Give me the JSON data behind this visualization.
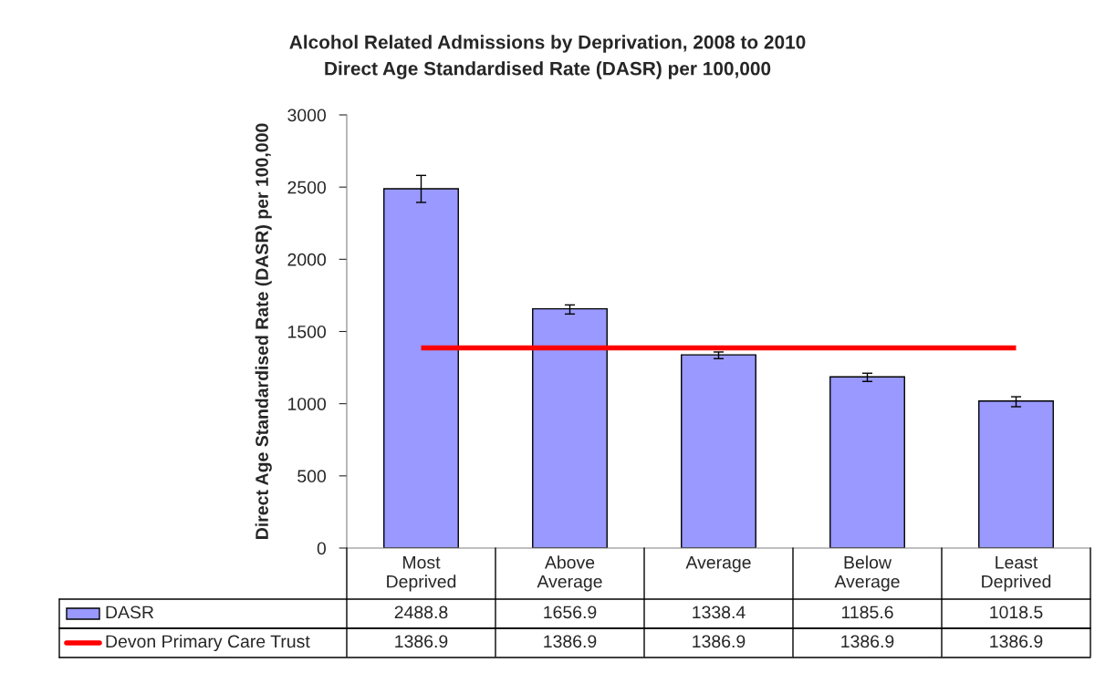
{
  "chart_data": {
    "type": "bar",
    "title": "Alcohol Related Admissions by Deprivation, 2008 to 2010",
    "subtitle": "Direct Age Standardised Rate (DASR) per 100,000",
    "ylabel": "Direct Age Standardised Rate (DASR) per 100,000",
    "categories": [
      "Most Deprived",
      "Above Average",
      "Average",
      "Below Average",
      "Least Deprived"
    ],
    "series": [
      {
        "name": "DASR",
        "color": "#9999ff",
        "values": [
          2488.8,
          1656.9,
          1338.4,
          1185.6,
          1018.5
        ],
        "errors": [
          [
            2394,
            2581
          ],
          [
            1621,
            1684
          ],
          [
            1312,
            1358
          ],
          [
            1154,
            1211
          ],
          [
            979,
            1048
          ]
        ]
      },
      {
        "name": "Devon Primary Care Trust",
        "type": "line",
        "color": "#ff0000",
        "values": [
          1386.9,
          1386.9,
          1386.9,
          1386.9,
          1386.9
        ]
      }
    ],
    "ylim": [
      0,
      3000
    ],
    "yticks": [
      0,
      500,
      1000,
      1500,
      2000,
      2500,
      3000
    ],
    "grid": false,
    "data_labels": true,
    "legend": "bottom"
  }
}
